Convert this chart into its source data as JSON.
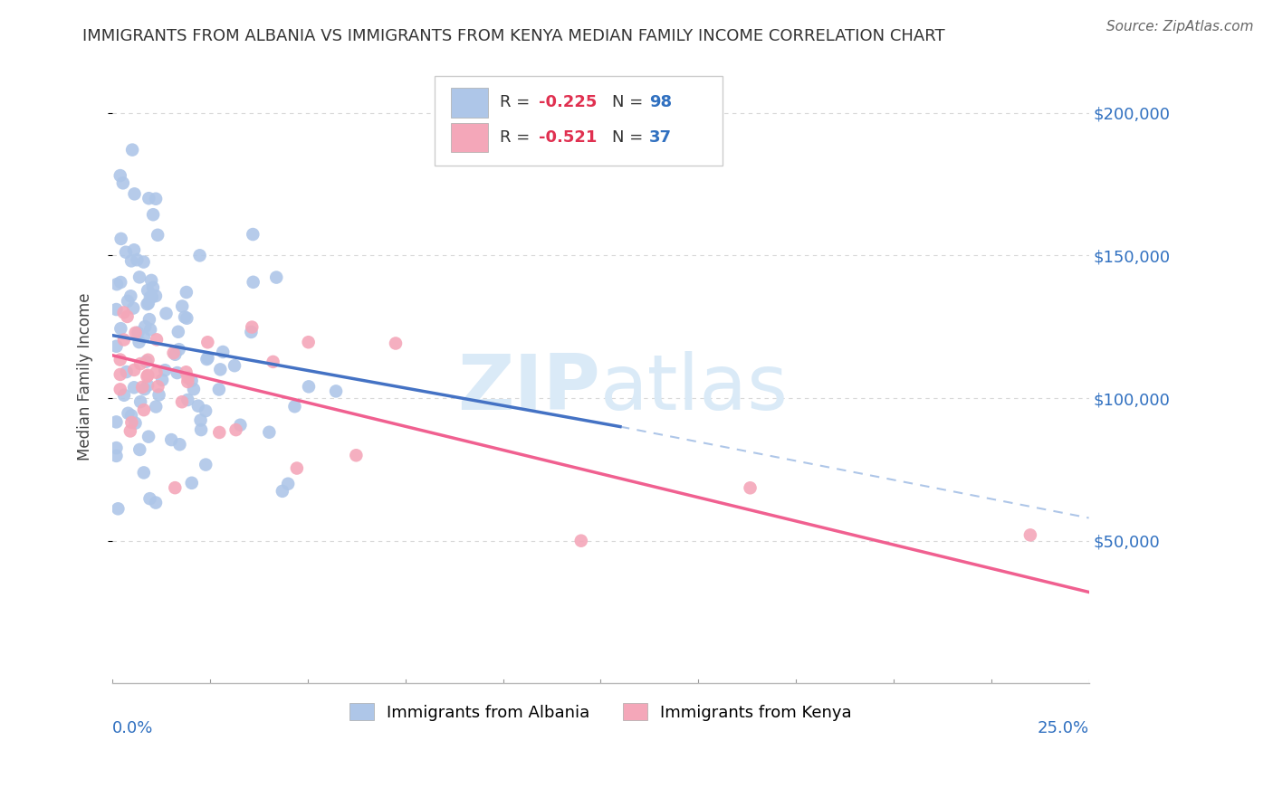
{
  "title": "IMMIGRANTS FROM ALBANIA VS IMMIGRANTS FROM KENYA MEDIAN FAMILY INCOME CORRELATION CHART",
  "source": "Source: ZipAtlas.com",
  "ylabel": "Median Family Income",
  "xlim": [
    0.0,
    0.25
  ],
  "ylim": [
    0,
    215000
  ],
  "albania_color": "#aec6e8",
  "kenya_color": "#f4a7b9",
  "albania_line_color": "#4472c4",
  "kenya_line_color": "#f06090",
  "dashed_line_color": "#aec6e8",
  "watermark_color": "#daeaf7",
  "albania_R": -0.225,
  "albania_N": 98,
  "kenya_R": -0.521,
  "kenya_N": 37,
  "albania_line_x0": 0.0,
  "albania_line_y0": 122000,
  "albania_line_x1": 0.13,
  "albania_line_y1": 90000,
  "kenya_line_x0": 0.0,
  "kenya_line_y0": 115000,
  "kenya_line_x1": 0.25,
  "kenya_line_y1": 32000,
  "dash_line_x0": 0.13,
  "dash_line_y0": 90000,
  "dash_line_x1": 0.25,
  "dash_line_y1": 58000,
  "ytick_values": [
    50000,
    100000,
    150000,
    200000
  ],
  "ytick_labels": [
    "$50,000",
    "$100,000",
    "$150,000",
    "$200,000"
  ],
  "grid_color": "#d8d8d8",
  "bottom_legend_labels": [
    "Immigrants from Albania",
    "Immigrants from Kenya"
  ]
}
